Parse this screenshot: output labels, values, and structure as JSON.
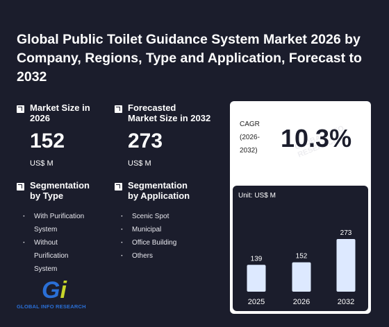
{
  "title": "Global Public Toilet Guidance System Market 2026 by Company, Regions, Type and Application, Forecast to 2032",
  "metrics": {
    "market_size": {
      "label_line1": "Market Size in",
      "label_line2": "2026",
      "value": "152",
      "unit": "US$ M"
    },
    "forecast": {
      "label_line1": "Forecasted",
      "label_line2": "Market Size in 2032",
      "value": "273",
      "unit": "US$ M"
    }
  },
  "segmentation_type": {
    "label_line1": "Segmentation",
    "label_line2": "by Type",
    "items": [
      [
        "With Purification",
        "System"
      ],
      [
        "Without",
        "Purification",
        "System"
      ]
    ]
  },
  "segmentation_application": {
    "label_line1": "Segmentation",
    "label_line2": "by Application",
    "items": [
      "Scenic Spot",
      "Municipal",
      "Office Building",
      "Others"
    ]
  },
  "cagr": {
    "label_line1": "CAGR",
    "label_line2": "(2026-",
    "label_line3": "2032)",
    "value": "10.3%"
  },
  "watermark": "GLOBAL INFO RESEARCH",
  "logo": {
    "mark_g": "G",
    "mark_i": "i",
    "name": "GLOBAL INFO RESEARCH"
  },
  "chart_data": {
    "type": "bar",
    "unit_label": "Unit: US$ M",
    "categories": [
      "2025",
      "2026",
      "2032"
    ],
    "values": [
      139,
      152,
      273
    ],
    "title": "",
    "xlabel": "",
    "ylabel": "",
    "ylim": [
      0,
      273
    ],
    "bar_color": "#dde9ff"
  }
}
